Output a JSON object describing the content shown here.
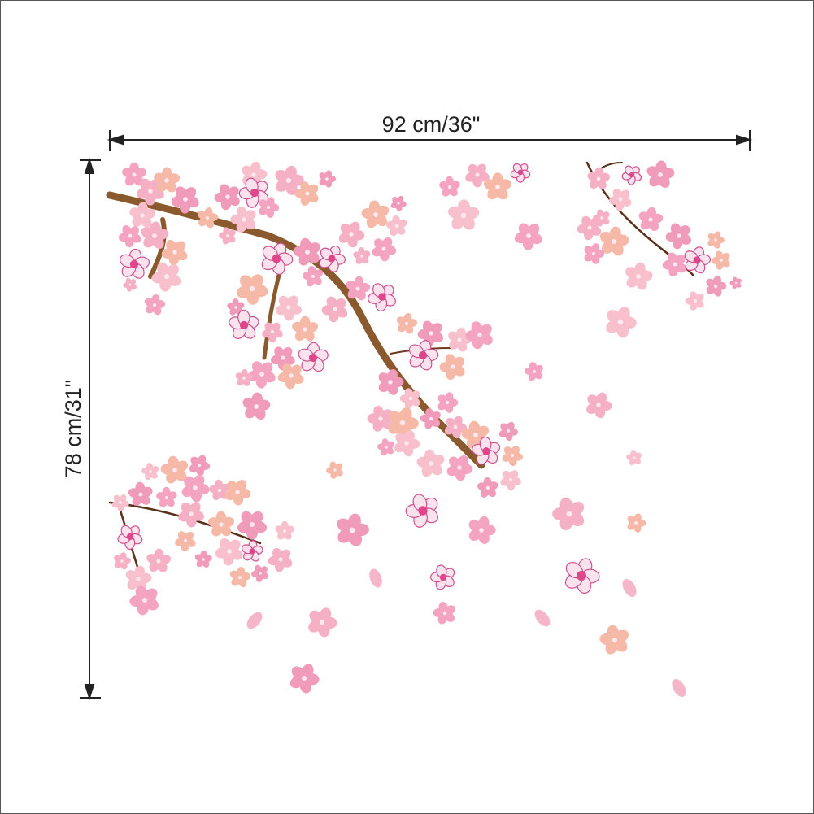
{
  "dimensions": {
    "width_label": "92 cm/36\"",
    "height_label": "78 cm/31\""
  }
}
